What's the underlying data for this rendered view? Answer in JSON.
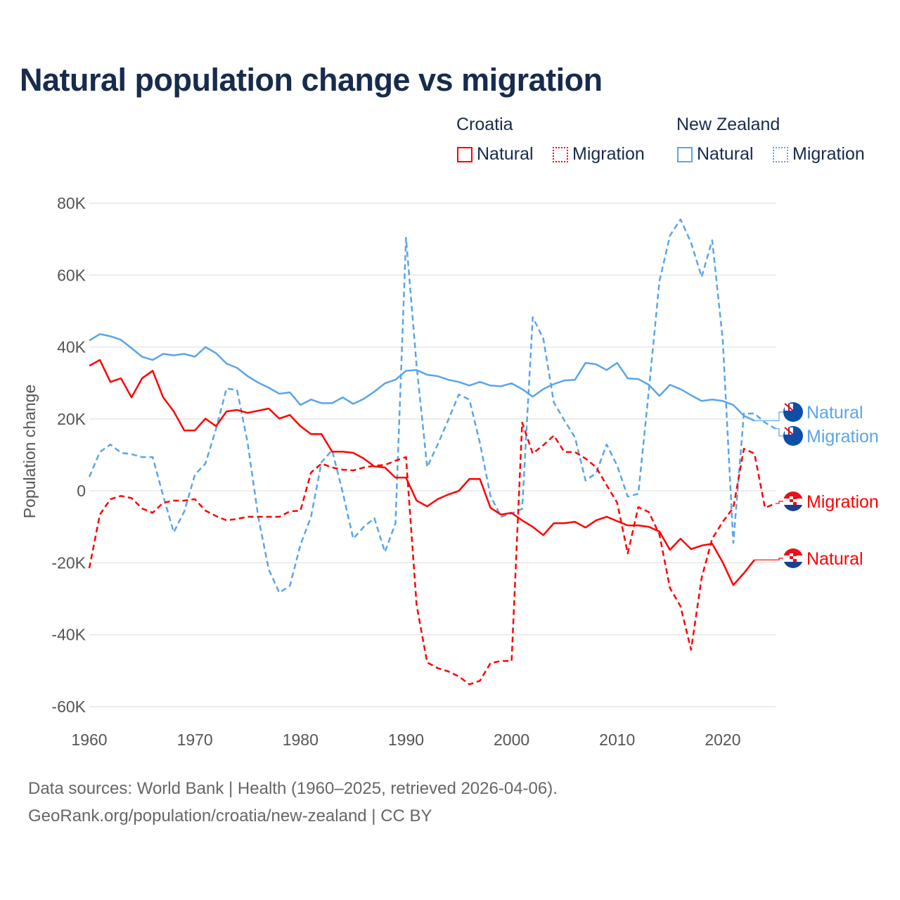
{
  "title": "Natural population change vs migration",
  "legend": {
    "groups": [
      {
        "name": "Croatia",
        "items": [
          "Natural",
          "Migration"
        ],
        "color": "#ff0000"
      },
      {
        "name": "New Zealand",
        "items": [
          "Natural",
          "Migration"
        ],
        "color": "#5aa5e8"
      }
    ]
  },
  "footer": {
    "line1": "Data sources: World Bank | Health (1960–2025, retrieved 2026-04-06).",
    "line2": "GeoRank.org/population/croatia/new-zealand | CC BY"
  },
  "chart_data": {
    "type": "line",
    "title": "Natural population change vs migration",
    "xlabel": "",
    "ylabel": "Population change",
    "xlim": [
      1960,
      2025
    ],
    "ylim": [
      -60000,
      80000
    ],
    "x_ticks": [
      "1960",
      "1970",
      "1980",
      "1990",
      "2000",
      "2010",
      "2020"
    ],
    "y_ticks": [
      {
        "v": 80000,
        "label": "80K"
      },
      {
        "v": 60000,
        "label": "60K"
      },
      {
        "v": 40000,
        "label": "40K"
      },
      {
        "v": 20000,
        "label": "20K"
      },
      {
        "v": 0,
        "label": "0"
      },
      {
        "v": -20000,
        "label": "-20K"
      },
      {
        "v": -40000,
        "label": "-40K"
      },
      {
        "v": -60000,
        "label": "-60K"
      }
    ],
    "grid": true,
    "start_year": 1960,
    "series": [
      {
        "name": "New Zealand Natural",
        "label": "Natural",
        "country": "New Zealand",
        "color": "#5aa5e8",
        "dash": false,
        "values": [
          41.8,
          43.6,
          43,
          42,
          39.7,
          37.3,
          36.4,
          38.1,
          37.7,
          38.1,
          37.3,
          40,
          38.3,
          35.4,
          34.2,
          31.9,
          30.1,
          28.7,
          27,
          27.4,
          23.9,
          25.4,
          24.4,
          24.4,
          26,
          24.2,
          25.6,
          27.6,
          29.9,
          30.9,
          33.4,
          33.6,
          32.3,
          31.9,
          30.9,
          30.3,
          29.3,
          30.3,
          29.3,
          29.1,
          29.9,
          28.3,
          26.2,
          28.3,
          29.7,
          30.7,
          30.9,
          35.6,
          35.2,
          33.6,
          35.6,
          31.3,
          31.1,
          29.5,
          26.4,
          29.5,
          28.3,
          26.6,
          25,
          25.4,
          25,
          23.9,
          20.9,
          19.5,
          null,
          null
        ]
      },
      {
        "name": "New Zealand Migration",
        "label": "Migration",
        "country": "New Zealand",
        "color": "#5aa5e8",
        "dash": true,
        "values": [
          3.9,
          10.8,
          12.9,
          10.6,
          10.2,
          9.4,
          9.4,
          -1.4,
          -11.5,
          -5.7,
          4.5,
          7.6,
          17.2,
          28.5,
          28,
          13.3,
          -7.2,
          -21.9,
          -28.3,
          -26.4,
          -15,
          -7.2,
          8,
          11.3,
          -0.4,
          -13.3,
          -10,
          -7.6,
          -17,
          -9,
          70.4,
          34.8,
          6.6,
          12.9,
          19.7,
          26.8,
          25.4,
          13.3,
          -1.4,
          -7.2,
          -6.3,
          -5,
          48.3,
          42.4,
          24.6,
          19.6,
          14.9,
          2.9,
          4.9,
          12.9,
          7,
          -1.6,
          -0.8,
          28,
          58.3,
          71,
          75.5,
          69,
          59.5,
          69.7,
          42,
          -14.5,
          21.5,
          21.5,
          19,
          17.3
        ]
      },
      {
        "name": "Croatia Migration",
        "label": "Migration",
        "country": "Croatia",
        "color": "#ff0000",
        "dash": true,
        "values": [
          -21.5,
          -6.6,
          -2.3,
          -1.4,
          -2,
          -4.9,
          -6.1,
          -3.3,
          -2.7,
          -2.7,
          -2.3,
          -5.5,
          -7,
          -8.2,
          -7.8,
          -7.2,
          -7.2,
          -7.2,
          -7.2,
          -5.7,
          -5.5,
          5.1,
          7.6,
          6.5,
          5.9,
          5.7,
          6.5,
          7,
          7.2,
          8.4,
          9.4,
          -31.7,
          -47.7,
          -49.3,
          -50.2,
          -51.6,
          -53.8,
          -52.8,
          -47.9,
          -47.3,
          -47.3,
          19,
          10.4,
          12.7,
          15.4,
          10.8,
          10.8,
          9,
          6.6,
          1.6,
          -3.3,
          -17.4,
          -4.5,
          -5.9,
          -12.1,
          -27,
          -32.1,
          -44.2,
          -24.2,
          -13.3,
          -8.6,
          -4.7,
          11.7,
          10.4,
          -4.7,
          -3.5
        ]
      },
      {
        "name": "Croatia Natural",
        "label": "Natural",
        "country": "Croatia",
        "color": "#ff0000",
        "dash": false,
        "values": [
          34.8,
          36.4,
          30.3,
          31.3,
          26,
          31.3,
          33.4,
          26,
          22.1,
          16.8,
          16.8,
          20.1,
          18,
          22.1,
          22.5,
          21.7,
          22.3,
          22.9,
          20.1,
          21.1,
          18,
          15.8,
          15.8,
          10.9,
          10.9,
          10.6,
          9,
          6.8,
          6.5,
          3.7,
          3.7,
          -2.7,
          -4.3,
          -2.3,
          -1,
          0,
          3.3,
          3.3,
          -4.7,
          -6.6,
          -6.1,
          -8.2,
          -10,
          -12.3,
          -9,
          -9,
          -8.6,
          -10.2,
          -8.2,
          -7.2,
          -8.4,
          -9.6,
          -9.6,
          -10,
          -11.3,
          -16.4,
          -13.3,
          -16.2,
          -15.2,
          -14.7,
          -19.9,
          -26.2,
          -22.9,
          -19.2,
          null,
          null
        ]
      }
    ],
    "values_unit": "thousands"
  }
}
